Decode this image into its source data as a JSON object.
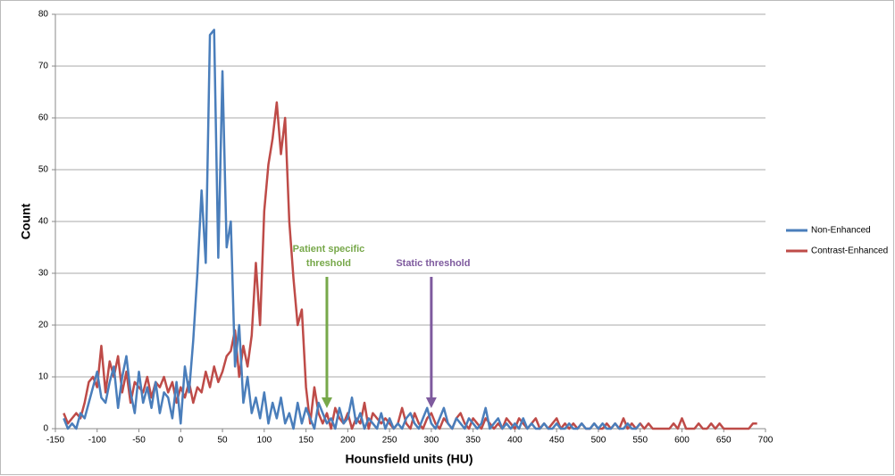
{
  "chart_data": {
    "type": "line",
    "x_label": "Hounsfield units (HU)",
    "y_label": "Count",
    "x": [
      -140,
      -135,
      -130,
      -125,
      -120,
      -115,
      -110,
      -105,
      -100,
      -95,
      -90,
      -85,
      -80,
      -75,
      -70,
      -65,
      -60,
      -55,
      -50,
      -45,
      -40,
      -35,
      -30,
      -25,
      -20,
      -15,
      -10,
      -5,
      0,
      5,
      10,
      15,
      20,
      25,
      30,
      35,
      40,
      45,
      50,
      55,
      60,
      65,
      70,
      75,
      80,
      85,
      90,
      95,
      100,
      105,
      110,
      115,
      120,
      125,
      130,
      135,
      140,
      145,
      150,
      155,
      160,
      165,
      170,
      175,
      180,
      185,
      190,
      195,
      200,
      205,
      210,
      215,
      220,
      225,
      230,
      235,
      240,
      245,
      250,
      255,
      260,
      265,
      270,
      275,
      280,
      285,
      290,
      295,
      300,
      305,
      310,
      315,
      320,
      325,
      330,
      335,
      340,
      345,
      350,
      355,
      360,
      365,
      370,
      375,
      380,
      385,
      390,
      395,
      400,
      405,
      410,
      415,
      420,
      425,
      430,
      435,
      440,
      445,
      450,
      455,
      460,
      465,
      470,
      475,
      480,
      485,
      490,
      495,
      500,
      505,
      510,
      515,
      520,
      525,
      530,
      535,
      540,
      545,
      550,
      555,
      560,
      565,
      570,
      575,
      580,
      585,
      590,
      595,
      600,
      605,
      610,
      615,
      620,
      625,
      630,
      635,
      640,
      645,
      650,
      655,
      660,
      665,
      670,
      675,
      680,
      685,
      690
    ],
    "series": [
      {
        "name": "Non-Enhanced",
        "color": "#4a7ebb",
        "values": [
          2,
          0,
          1,
          0,
          3,
          2,
          5,
          8,
          11,
          6,
          5,
          9,
          12,
          4,
          10,
          14,
          7,
          3,
          11,
          5,
          8,
          4,
          9,
          3,
          7,
          6,
          2,
          9,
          1,
          12,
          7,
          17,
          30,
          46,
          32,
          76,
          77,
          33,
          69,
          35,
          40,
          12,
          20,
          5,
          10,
          3,
          6,
          2,
          7,
          1,
          5,
          2,
          6,
          1,
          3,
          0,
          5,
          1,
          4,
          2,
          0,
          5,
          3,
          1,
          2,
          0,
          4,
          1,
          2,
          6,
          1,
          3,
          0,
          2,
          1,
          0,
          3,
          0,
          2,
          0,
          1,
          0,
          2,
          3,
          1,
          0,
          2,
          4,
          1,
          0,
          2,
          4,
          1,
          0,
          2,
          1,
          0,
          2,
          1,
          0,
          1,
          4,
          0,
          1,
          2,
          0,
          1,
          0,
          1,
          0,
          2,
          0,
          1,
          0,
          0,
          1,
          0,
          0,
          1,
          0,
          0,
          1,
          0,
          0,
          1,
          0,
          0,
          1,
          0,
          1,
          0,
          0,
          1,
          0,
          0,
          1,
          0,
          0,
          1,
          null,
          null,
          null,
          null,
          null,
          null,
          null,
          null,
          null,
          null,
          null,
          null,
          null,
          null,
          null,
          null,
          null,
          null,
          null,
          null,
          null,
          null,
          null,
          null,
          null,
          null,
          null,
          null
        ]
      },
      {
        "name": "Contrast-Enhanced",
        "color": "#be4b48",
        "values": [
          3,
          1,
          2,
          3,
          2,
          5,
          9,
          10,
          8,
          16,
          7,
          13,
          10,
          14,
          7,
          11,
          5,
          9,
          8,
          7,
          10,
          6,
          9,
          8,
          10,
          7,
          9,
          5,
          8,
          6,
          9,
          5,
          8,
          7,
          11,
          8,
          12,
          9,
          11,
          14,
          15,
          19,
          10,
          16,
          12,
          18,
          32,
          20,
          42,
          51,
          56,
          63,
          53,
          60,
          40,
          29,
          20,
          23,
          8,
          1,
          8,
          3,
          1,
          3,
          0,
          4,
          2,
          1,
          3,
          0,
          2,
          1,
          5,
          0,
          3,
          2,
          1,
          2,
          1,
          0,
          1,
          4,
          1,
          0,
          3,
          1,
          0,
          2,
          3,
          1,
          0,
          2,
          1,
          0,
          2,
          3,
          1,
          0,
          2,
          1,
          0,
          2,
          1,
          0,
          1,
          0,
          2,
          1,
          0,
          2,
          1,
          0,
          1,
          2,
          0,
          1,
          0,
          1,
          2,
          0,
          1,
          0,
          1,
          0,
          1,
          0,
          0,
          1,
          0,
          0,
          1,
          0,
          1,
          0,
          2,
          0,
          1,
          0,
          1,
          0,
          1,
          0,
          0,
          0,
          0,
          0,
          1,
          0,
          2,
          0,
          0,
          0,
          1,
          0,
          0,
          1,
          0,
          1,
          0,
          0,
          0,
          0,
          0,
          0,
          0,
          1,
          1
        ]
      }
    ],
    "xlim": [
      -150,
      700
    ],
    "xticks": [
      -150,
      -100,
      -50,
      0,
      50,
      100,
      150,
      200,
      250,
      300,
      350,
      400,
      450,
      500,
      550,
      600,
      650,
      700
    ],
    "ylim": [
      0,
      80
    ],
    "yticks": [
      0,
      10,
      20,
      30,
      40,
      50,
      60,
      70,
      80
    ],
    "grid": true,
    "legend": "right",
    "annotations": [
      {
        "lines": [
          "Patient specific",
          "threshold"
        ],
        "x": 175,
        "color": "#77a84a"
      },
      {
        "lines": [
          "Static threshold"
        ],
        "x": 300,
        "color": "#7e5a9e"
      }
    ]
  }
}
